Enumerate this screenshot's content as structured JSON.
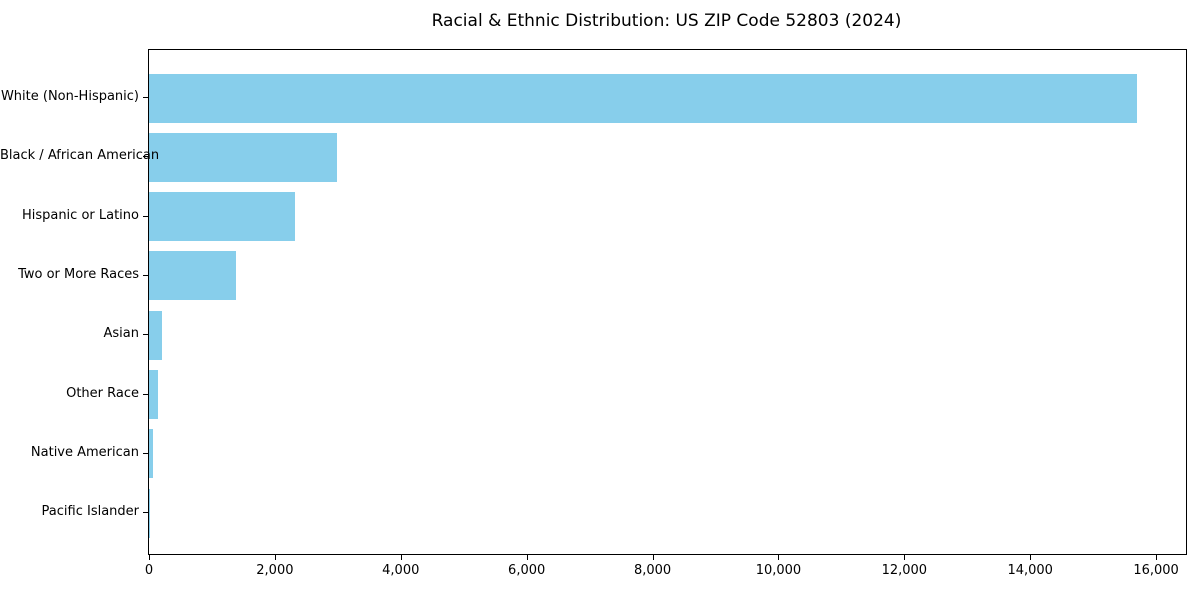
{
  "chart_data": {
    "type": "bar",
    "orientation": "horizontal",
    "title": "Racial & Ethnic Distribution: US ZIP Code 52803 (2024)",
    "categories": [
      "White (Non-Hispanic)",
      "Black / African American",
      "Hispanic or Latino",
      "Two or More Races",
      "Asian",
      "Other Race",
      "Native American",
      "Pacific Islander"
    ],
    "values": [
      15700,
      2990,
      2320,
      1380,
      210,
      150,
      60,
      10
    ],
    "bar_color": "#87CEEB",
    "axis_color": "#000000",
    "text_color": "#000000",
    "background_color": "#ffffff",
    "xlabel": "",
    "ylabel": "",
    "xlim": [
      0,
      16475
    ],
    "x_ticks": [
      0,
      2000,
      4000,
      6000,
      8000,
      10000,
      12000,
      14000,
      16000
    ],
    "x_tick_labels": [
      "0",
      "2,000",
      "4,000",
      "6,000",
      "8,000",
      "10,000",
      "12,000",
      "14,000",
      "16,000"
    ],
    "grid": false,
    "legend": "none",
    "largest_category_first": true
  }
}
